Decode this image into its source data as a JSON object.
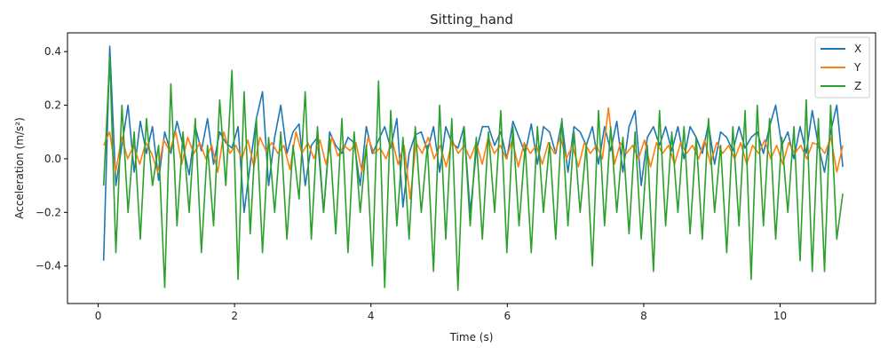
{
  "chart_data": {
    "type": "line",
    "title": "Sitting_hand",
    "xlabel": "Time (s)",
    "ylabel": "Acceleration (m/s²)",
    "xlim": [
      -0.45,
      11.4
    ],
    "ylim": [
      -0.54,
      0.47
    ],
    "xticks": [
      0,
      2,
      4,
      6,
      8,
      10
    ],
    "yticks": [
      -0.4,
      -0.2,
      0.0,
      0.2,
      0.4
    ],
    "xtick_labels": [
      "0",
      "2",
      "4",
      "6",
      "8",
      "10"
    ],
    "ytick_labels": [
      "−0.4",
      "−0.2",
      "0.0",
      "0.2",
      "0.4"
    ],
    "grid": false,
    "legend": "top-right",
    "x_range": [
      0.08,
      10.92
    ],
    "series": [
      {
        "name": "X",
        "color": "#1f77b4",
        "values": [
          -0.38,
          0.42,
          -0.1,
          0.05,
          0.2,
          -0.05,
          0.14,
          0.02,
          0.12,
          -0.08,
          0.1,
          0.02,
          0.14,
          0.05,
          -0.06,
          0.12,
          0.03,
          0.15,
          -0.02,
          0.1,
          0.06,
          0.04,
          0.12,
          -0.2,
          -0.02,
          0.15,
          0.25,
          -0.1,
          0.08,
          0.2,
          0.02,
          0.1,
          0.13,
          -0.1,
          0.05,
          0.08,
          -0.2,
          0.1,
          0.05,
          0.02,
          0.08,
          0.06,
          -0.1,
          0.12,
          0.02,
          0.07,
          0.12,
          0.04,
          0.15,
          -0.18,
          0.02,
          0.09,
          0.1,
          0.03,
          0.12,
          -0.05,
          0.12,
          0.06,
          0.04,
          0.12,
          -0.2,
          0.03,
          0.12,
          0.12,
          0.05,
          0.1,
          0.0,
          0.14,
          0.08,
          0.02,
          0.13,
          -0.02,
          0.12,
          0.1,
          0.02,
          0.14,
          -0.05,
          0.12,
          0.1,
          0.05,
          0.12,
          -0.02,
          0.12,
          0.03,
          0.14,
          -0.05,
          0.12,
          0.18,
          -0.1,
          0.08,
          0.12,
          0.05,
          0.12,
          0.03,
          0.12,
          0.0,
          0.12,
          0.08,
          0.02,
          0.13,
          -0.02,
          0.1,
          0.08,
          0.03,
          0.12,
          0.04,
          0.08,
          0.1,
          0.02,
          0.12,
          0.2,
          0.05,
          0.1,
          0.0,
          0.12,
          0.02,
          0.18,
          0.05,
          -0.05,
          0.1,
          0.2,
          -0.03
        ]
      },
      {
        "name": "Y",
        "color": "#ff7f0e",
        "values": [
          0.05,
          0.1,
          -0.05,
          0.08,
          0.0,
          0.05,
          -0.02,
          0.06,
          0.02,
          -0.05,
          0.07,
          0.03,
          0.1,
          -0.02,
          0.08,
          0.02,
          0.06,
          0.0,
          0.05,
          -0.05,
          0.1,
          0.02,
          0.05,
          0.0,
          0.07,
          -0.03,
          0.08,
          0.03,
          0.06,
          0.02,
          0.05,
          -0.04,
          0.1,
          0.02,
          0.06,
          0.0,
          0.07,
          -0.02,
          0.08,
          0.01,
          0.05,
          0.03,
          0.06,
          -0.05,
          0.08,
          0.02,
          0.04,
          0.0,
          0.07,
          -0.02,
          0.05,
          -0.15,
          0.06,
          0.02,
          0.08,
          0.0,
          0.05,
          -0.03,
          0.07,
          0.02,
          0.05,
          0.0,
          0.06,
          -0.02,
          0.08,
          0.02,
          0.05,
          0.0,
          0.07,
          -0.03,
          0.06,
          0.02,
          0.05,
          -0.02,
          0.06,
          0.02,
          0.08,
          0.0,
          0.05,
          -0.03,
          0.06,
          0.02,
          0.05,
          0.0,
          0.19,
          -0.02,
          0.06,
          0.02,
          0.05,
          0.0,
          0.07,
          -0.03,
          0.06,
          0.02,
          0.05,
          -0.02,
          0.06,
          0.02,
          0.05,
          0.0,
          0.07,
          -0.02,
          0.06,
          0.02,
          0.05,
          0.0,
          0.06,
          -0.02,
          0.05,
          0.02,
          0.07,
          0.0,
          0.05,
          -0.02,
          0.06,
          0.02,
          0.05,
          0.0,
          0.06,
          0.05,
          0.02,
          0.08,
          -0.05,
          0.05
        ]
      },
      {
        "name": "Z",
        "color": "#2ca02c",
        "values": [
          -0.1,
          0.38,
          -0.35,
          0.2,
          -0.2,
          0.1,
          -0.3,
          0.15,
          -0.1,
          0.05,
          -0.48,
          0.28,
          -0.25,
          0.1,
          -0.2,
          0.15,
          -0.35,
          0.05,
          -0.25,
          0.22,
          -0.1,
          0.33,
          -0.45,
          0.25,
          -0.28,
          0.15,
          -0.35,
          0.08,
          -0.2,
          0.1,
          -0.3,
          0.05,
          -0.15,
          0.25,
          -0.3,
          0.12,
          -0.2,
          0.08,
          -0.28,
          0.15,
          -0.35,
          0.1,
          -0.2,
          0.05,
          -0.4,
          0.29,
          -0.48,
          0.18,
          -0.25,
          0.08,
          -0.3,
          0.12,
          -0.2,
          0.05,
          -0.42,
          0.2,
          -0.3,
          0.15,
          -0.49,
          0.12,
          -0.25,
          0.08,
          -0.3,
          0.1,
          -0.2,
          0.18,
          -0.35,
          0.12,
          -0.25,
          0.05,
          -0.35,
          0.12,
          -0.2,
          0.06,
          -0.3,
          0.15,
          -0.25,
          0.1,
          -0.2,
          0.05,
          -0.4,
          0.18,
          -0.25,
          0.12,
          -0.2,
          0.08,
          -0.28,
          0.1,
          -0.3,
          0.05,
          -0.42,
          0.18,
          -0.25,
          0.1,
          -0.2,
          0.12,
          -0.28,
          0.08,
          -0.3,
          0.15,
          -0.2,
          0.05,
          -0.35,
          0.12,
          -0.25,
          0.18,
          -0.45,
          0.2,
          -0.25,
          0.15,
          -0.3,
          0.08,
          -0.2,
          0.12,
          -0.38,
          0.22,
          -0.42,
          0.15,
          -0.42,
          0.2,
          -0.3,
          -0.13
        ]
      }
    ]
  }
}
